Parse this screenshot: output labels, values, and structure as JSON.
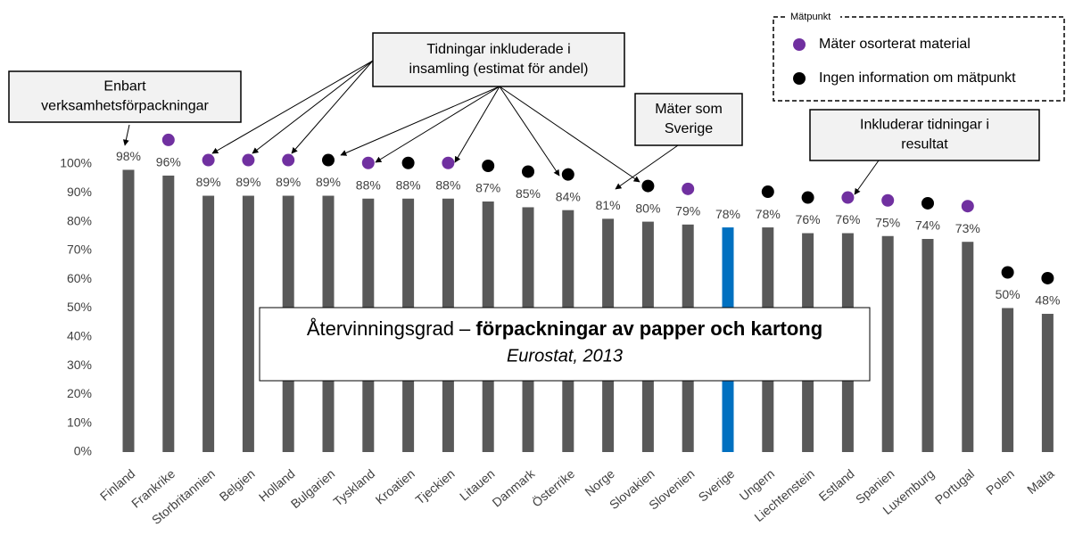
{
  "chart_data": {
    "type": "bar",
    "title": "Återvinningsgrad –",
    "title_emphasis": "förpackningar av papper och kartong",
    "subtitle": "Eurostat, 2013",
    "categories": [
      "Finland",
      "Frankrike",
      "Storbritannien",
      "Belgien",
      "Holland",
      "Bulgarien",
      "Tyskland",
      "Kroatien",
      "Tjeckien",
      "Litauen",
      "Danmark",
      "Österrike",
      "Norge",
      "Slovakien",
      "Slovenien",
      "Sverige",
      "Ungern",
      "Liechtenstein",
      "Estland",
      "Spanien",
      "Luxemburg",
      "Portugal",
      "Polen",
      "Malta"
    ],
    "values": [
      98,
      96,
      89,
      89,
      89,
      89,
      88,
      88,
      88,
      87,
      85,
      84,
      81,
      80,
      79,
      78,
      78,
      76,
      76,
      75,
      74,
      73,
      50,
      48
    ],
    "value_labels": [
      "98%",
      "96%",
      "89%",
      "89%",
      "89%",
      "89%",
      "88%",
      "88%",
      "88%",
      "87%",
      "85%",
      "84%",
      "81%",
      "80%",
      "79%",
      "78%",
      "78%",
      "76%",
      "76%",
      "75%",
      "74%",
      "73%",
      "50%",
      "48%"
    ],
    "color": "#595959",
    "highlight": {
      "category": "Sverige",
      "color": "#0070c0"
    },
    "ylim": [
      0,
      100
    ],
    "yticks": [
      {
        "value": 0,
        "label": "0%"
      },
      {
        "value": 10,
        "label": "10%"
      },
      {
        "value": 20,
        "label": "20%"
      },
      {
        "value": 30,
        "label": "30%"
      },
      {
        "value": 40,
        "label": "40%"
      },
      {
        "value": 50,
        "label": "50%"
      },
      {
        "value": 60,
        "label": "60%"
      },
      {
        "value": 70,
        "label": "70%"
      },
      {
        "value": 80,
        "label": "80%"
      },
      {
        "value": 90,
        "label": "90%"
      },
      {
        "value": 100,
        "label": "100%"
      }
    ],
    "legend": {
      "title": "Mätpunkt",
      "entries": [
        {
          "name": "Mäter osorterat material",
          "color": "#7030a0"
        },
        {
          "name": "Ingen information om mätpunkt",
          "color": "#000000"
        }
      ]
    },
    "markers": [
      null,
      0,
      0,
      0,
      0,
      1,
      0,
      1,
      0,
      1,
      1,
      1,
      null,
      1,
      0,
      null,
      1,
      1,
      0,
      0,
      1,
      0,
      1,
      1
    ],
    "annotations": [
      {
        "lines": [
          "Enbart",
          "verksamhetsförpackningar"
        ]
      },
      {
        "lines": [
          "Tidningar inkluderade i",
          "insamling (estimat för andel)"
        ]
      },
      {
        "lines": [
          "Mäter som",
          "Sverige"
        ]
      },
      {
        "lines": [
          "Inkluderar tidningar i",
          "resultat"
        ]
      }
    ]
  }
}
